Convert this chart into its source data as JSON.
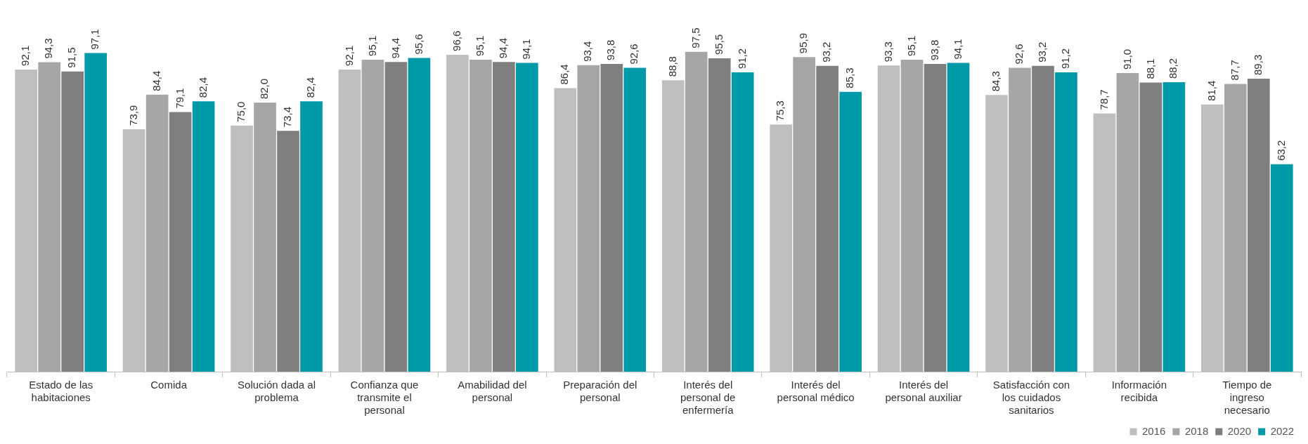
{
  "chart_data": {
    "type": "bar",
    "categories": [
      "Estado de las habitaciones",
      "Comida",
      "Solución dada al problema",
      "Confianza que transmite el personal",
      "Amabilidad del personal",
      "Preparación del personal",
      "Interés del personal de enfermería",
      "Interés del personal médico",
      "Interés del personal auxiliar",
      "Satisfacción con los cuidados sanitarios",
      "Información recibida",
      "Tiempo de ingreso necesario"
    ],
    "series": [
      {
        "name": "2016",
        "color": "#bfbfbf",
        "values": [
          92.1,
          73.9,
          75.0,
          92.1,
          96.6,
          86.4,
          88.8,
          75.3,
          93.3,
          84.3,
          78.7,
          81.4
        ],
        "value_labels": [
          "92,1",
          "73,9",
          "75,0",
          "92,1",
          "96,6",
          "86,4",
          "88,8",
          "75,3",
          "93,3",
          "84,3",
          "78,7",
          "81,4"
        ]
      },
      {
        "name": "2018",
        "color": "#a6a6a6",
        "values": [
          94.3,
          84.4,
          82.0,
          95.1,
          95.1,
          93.4,
          97.5,
          95.9,
          95.1,
          92.6,
          91.0,
          87.7
        ],
        "value_labels": [
          "94,3",
          "84,4",
          "82,0",
          "95,1",
          "95,1",
          "93,4",
          "97,5",
          "95,9",
          "95,1",
          "92,6",
          "91,0",
          "87,7"
        ]
      },
      {
        "name": "2020",
        "color": "#7f7f7f",
        "values": [
          91.5,
          79.1,
          73.4,
          94.4,
          94.4,
          93.8,
          95.5,
          93.2,
          93.8,
          93.2,
          88.1,
          89.3
        ],
        "value_labels": [
          "91,5",
          "79,1",
          "73,4",
          "94,4",
          "94,4",
          "93,8",
          "95,5",
          "93,2",
          "93,8",
          "93,2",
          "88,1",
          "89,3"
        ]
      },
      {
        "name": "2022",
        "color": "#0099a8",
        "values": [
          97.1,
          82.4,
          82.4,
          95.6,
          94.1,
          92.6,
          91.2,
          85.3,
          94.1,
          91.2,
          88.2,
          63.2
        ],
        "value_labels": [
          "97,1",
          "82,4",
          "82,4",
          "95,6",
          "94,1",
          "92,6",
          "91,2",
          "85,3",
          "94,1",
          "91,2",
          "88,2",
          "63,2"
        ]
      }
    ],
    "legend": "bottom right",
    "grid": false
  }
}
